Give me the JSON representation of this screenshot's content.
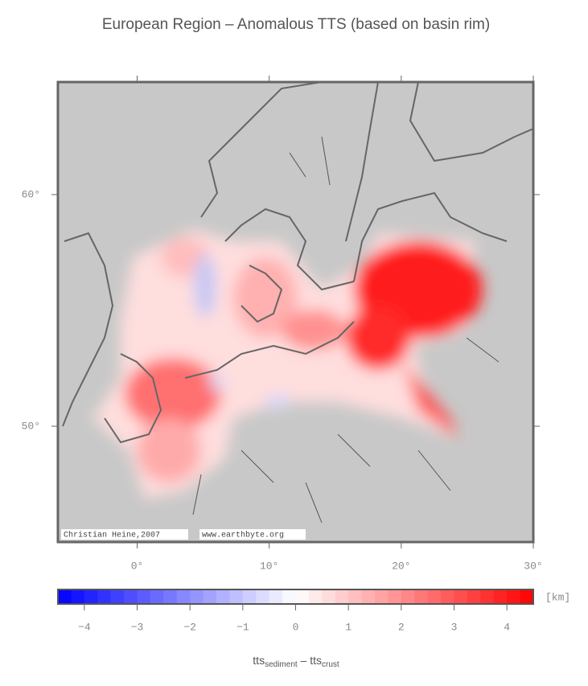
{
  "title": "European Region – Anomalous TTS (based on basin rim)",
  "map": {
    "xlim": [
      -6,
      30
    ],
    "ylim": [
      45,
      64.86
    ],
    "lon_ticks": [
      {
        "value": 0,
        "label": "0°"
      },
      {
        "value": 10,
        "label": "10°"
      },
      {
        "value": 20,
        "label": "20°"
      },
      {
        "value": 30,
        "label": "30°"
      }
    ],
    "lat_ticks": [
      {
        "value": 50,
        "label": "50°"
      },
      {
        "value": 60,
        "label": "60°"
      }
    ],
    "credits": [
      "Christian Heine,2007",
      "www.earthbyte.org"
    ]
  },
  "colorbar": {
    "clim": [
      -4.5,
      4.5
    ],
    "colors": [
      "#0000ff",
      "#ffffff",
      "#ff0000"
    ],
    "ticks": [
      {
        "value": -4,
        "label": "−4"
      },
      {
        "value": -3,
        "label": "−3"
      },
      {
        "value": -2,
        "label": "−2"
      },
      {
        "value": -1,
        "label": "−1"
      },
      0,
      1,
      2,
      3,
      4
    ],
    "unit": "[km]"
  },
  "xlabel": [
    {
      "text": "tts",
      "sub": "sediment"
    },
    {
      "text": " – tts",
      "sub": "crust"
    }
  ]
}
